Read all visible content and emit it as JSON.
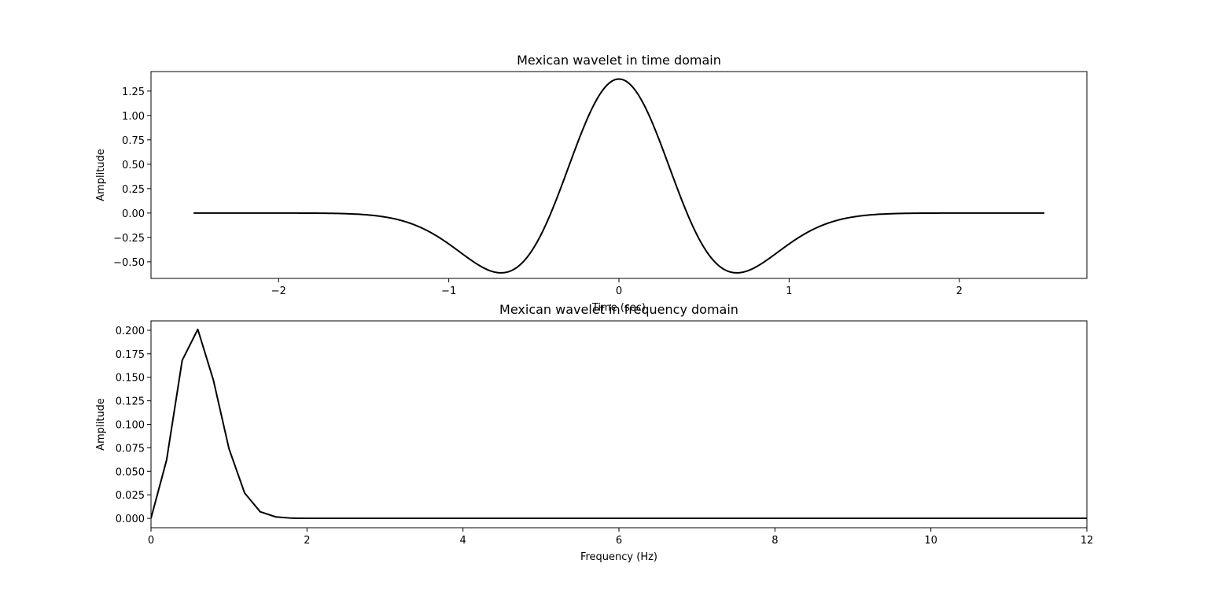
{
  "chart_data": [
    {
      "type": "line",
      "title": "Mexican wavelet in time domain",
      "xlabel": "Time (sec)",
      "ylabel": "Amplitude",
      "xlim": [
        -2.75,
        2.75
      ],
      "ylim": [
        -0.67,
        1.45
      ],
      "xticks": [
        -2,
        -1,
        0,
        1,
        2
      ],
      "xtick_labels": [
        "−2",
        "−1",
        "0",
        "1",
        "2"
      ],
      "yticks": [
        -0.5,
        -0.25,
        0,
        0.25,
        0.5,
        0.75,
        1.0,
        1.25
      ],
      "ytick_labels": [
        "−0.50",
        "−0.25",
        "0.00",
        "0.25",
        "0.50",
        "0.75",
        "1.00",
        "1.25"
      ],
      "grid": false,
      "series": [
        {
          "color": "#000000",
          "function": "mexican_hat",
          "peak": 1.3736,
          "sigma": 0.4,
          "x_range": [
            -2.5,
            2.5
          ],
          "samples": 501
        }
      ]
    },
    {
      "type": "line",
      "title": "Mexican wavelet in frequency domain",
      "xlabel": "Frequency (Hz)",
      "ylabel": "Amplitude",
      "xlim": [
        0,
        12
      ],
      "ylim": [
        -0.01,
        0.21
      ],
      "xticks": [
        0,
        2,
        4,
        6,
        8,
        10,
        12
      ],
      "xtick_labels": [
        "0",
        "2",
        "4",
        "6",
        "8",
        "10",
        "12"
      ],
      "yticks": [
        0,
        0.025,
        0.05,
        0.075,
        0.1,
        0.125,
        0.15,
        0.175,
        0.2
      ],
      "ytick_labels": [
        "0.000",
        "0.025",
        "0.050",
        "0.075",
        "0.100",
        "0.125",
        "0.150",
        "0.175",
        "0.200"
      ],
      "grid": false,
      "series": [
        {
          "color": "#000000",
          "x": [
            0,
            0.2,
            0.4,
            0.6,
            0.8,
            1.0,
            1.2,
            1.4,
            1.6,
            1.8,
            2.0,
            2.2,
            2.4,
            3,
            4,
            5,
            6,
            7,
            8,
            9,
            10,
            11,
            12
          ],
          "y": [
            0.0,
            0.062,
            0.168,
            0.201,
            0.147,
            0.074,
            0.027,
            0.007,
            0.0015,
            0.0002,
            0.0,
            0.0,
            0.0,
            0.0,
            0.0,
            0.0,
            0.0,
            0.0,
            0.0,
            0.0,
            0.0,
            0.0,
            0.0
          ]
        }
      ]
    }
  ]
}
